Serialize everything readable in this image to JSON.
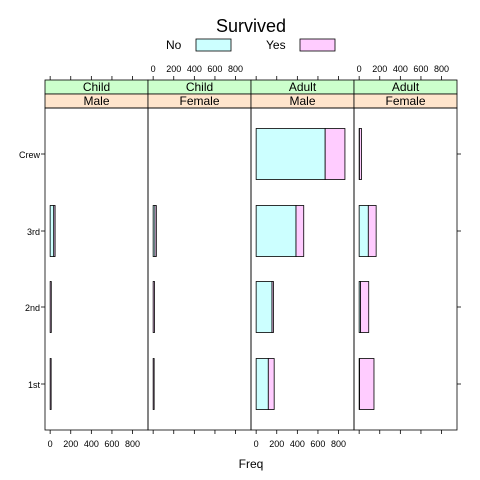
{
  "chart_data": {
    "type": "bar",
    "orientation": "horizontal",
    "stacked": true,
    "title": "Survived",
    "xlabel": "Freq",
    "ylabel": "",
    "xlim": [
      -50,
      950
    ],
    "x_ticks": [
      0,
      200,
      400,
      600,
      800
    ],
    "categories": [
      "1st",
      "2nd",
      "3rd",
      "Crew"
    ],
    "legend": {
      "placement": "top",
      "entries": [
        {
          "label": "No",
          "color": "#ccffff"
        },
        {
          "label": "Yes",
          "color": "#ffccff"
        }
      ]
    },
    "panels": [
      {
        "age": "Child",
        "sex": "Male",
        "series": [
          {
            "name": "No",
            "values": [
              0,
              0,
              35,
              0
            ]
          },
          {
            "name": "Yes",
            "values": [
              5,
              11,
              13,
              0
            ]
          }
        ]
      },
      {
        "age": "Child",
        "sex": "Female",
        "series": [
          {
            "name": "No",
            "values": [
              0,
              0,
              17,
              0
            ]
          },
          {
            "name": "Yes",
            "values": [
              1,
              13,
              14,
              0
            ]
          }
        ]
      },
      {
        "age": "Adult",
        "sex": "Male",
        "series": [
          {
            "name": "No",
            "values": [
              118,
              154,
              387,
              670
            ]
          },
          {
            "name": "Yes",
            "values": [
              57,
              14,
              75,
              192
            ]
          }
        ]
      },
      {
        "age": "Adult",
        "sex": "Female",
        "series": [
          {
            "name": "No",
            "values": [
              4,
              13,
              89,
              3
            ]
          },
          {
            "name": "Yes",
            "values": [
              140,
              80,
              76,
              20
            ]
          }
        ]
      }
    ],
    "strip_colors": {
      "age": "#ccffcc",
      "sex": "#ffe5cc"
    },
    "grid": false
  }
}
